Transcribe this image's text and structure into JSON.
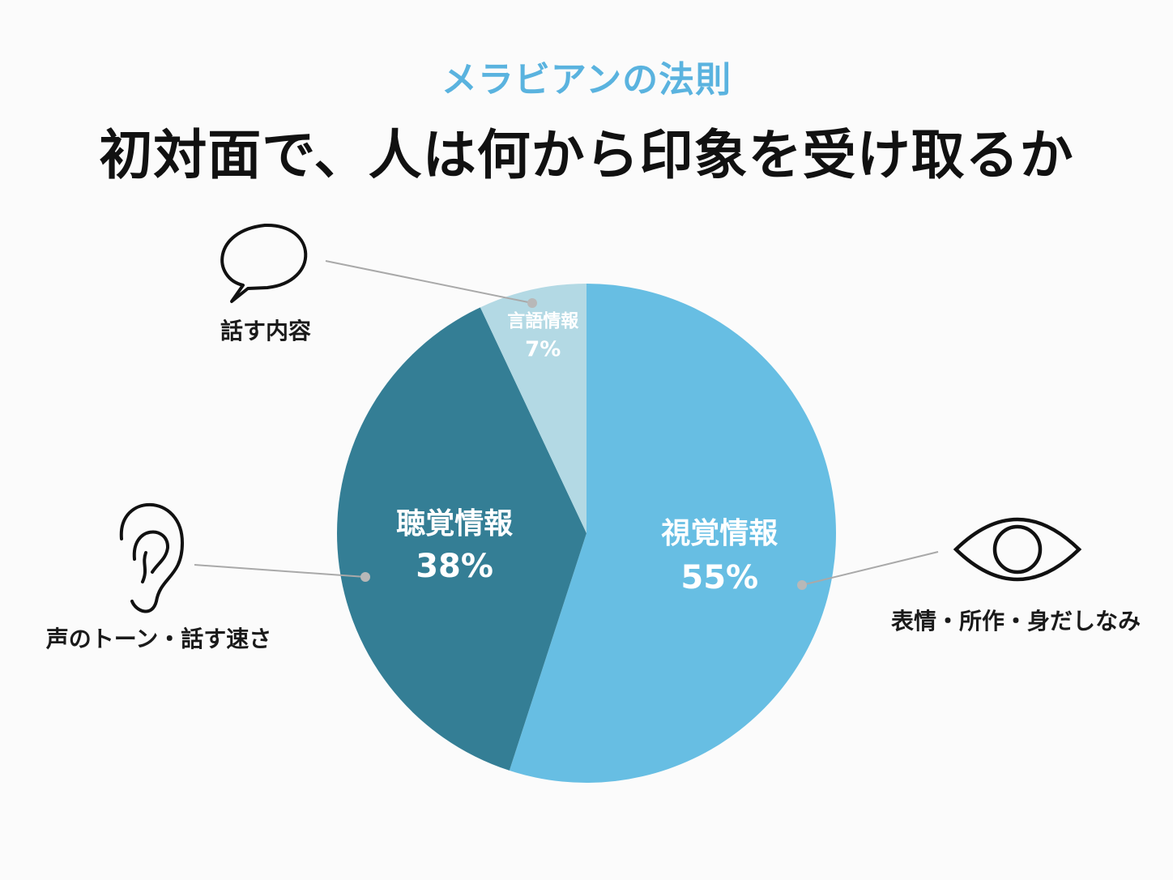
{
  "header": {
    "subtitle": "メラビアンの法則",
    "title": "初対面で、人は何から印象を受け取るか"
  },
  "chart_data": {
    "type": "pie",
    "title": "初対面で、人は何から印象を受け取るか",
    "subtitle": "メラビアンの法則",
    "slices": [
      {
        "label": "視覚情報",
        "value": 55,
        "value_label": "55%",
        "color": "#67bee3",
        "description": "表情・所作・身だしなみ",
        "icon": "eye-icon"
      },
      {
        "label": "聴覚情報",
        "value": 38,
        "value_label": "38%",
        "color": "#347e95",
        "description": "声のトーン・話す速さ",
        "icon": "ear-icon"
      },
      {
        "label": "言語情報",
        "value": 7,
        "value_label": "7%",
        "color": "#b3d9e4",
        "description": "話す内容",
        "icon": "speech-bubble-icon"
      }
    ],
    "start_angle": "12 o'clock",
    "direction": "clockwise"
  }
}
